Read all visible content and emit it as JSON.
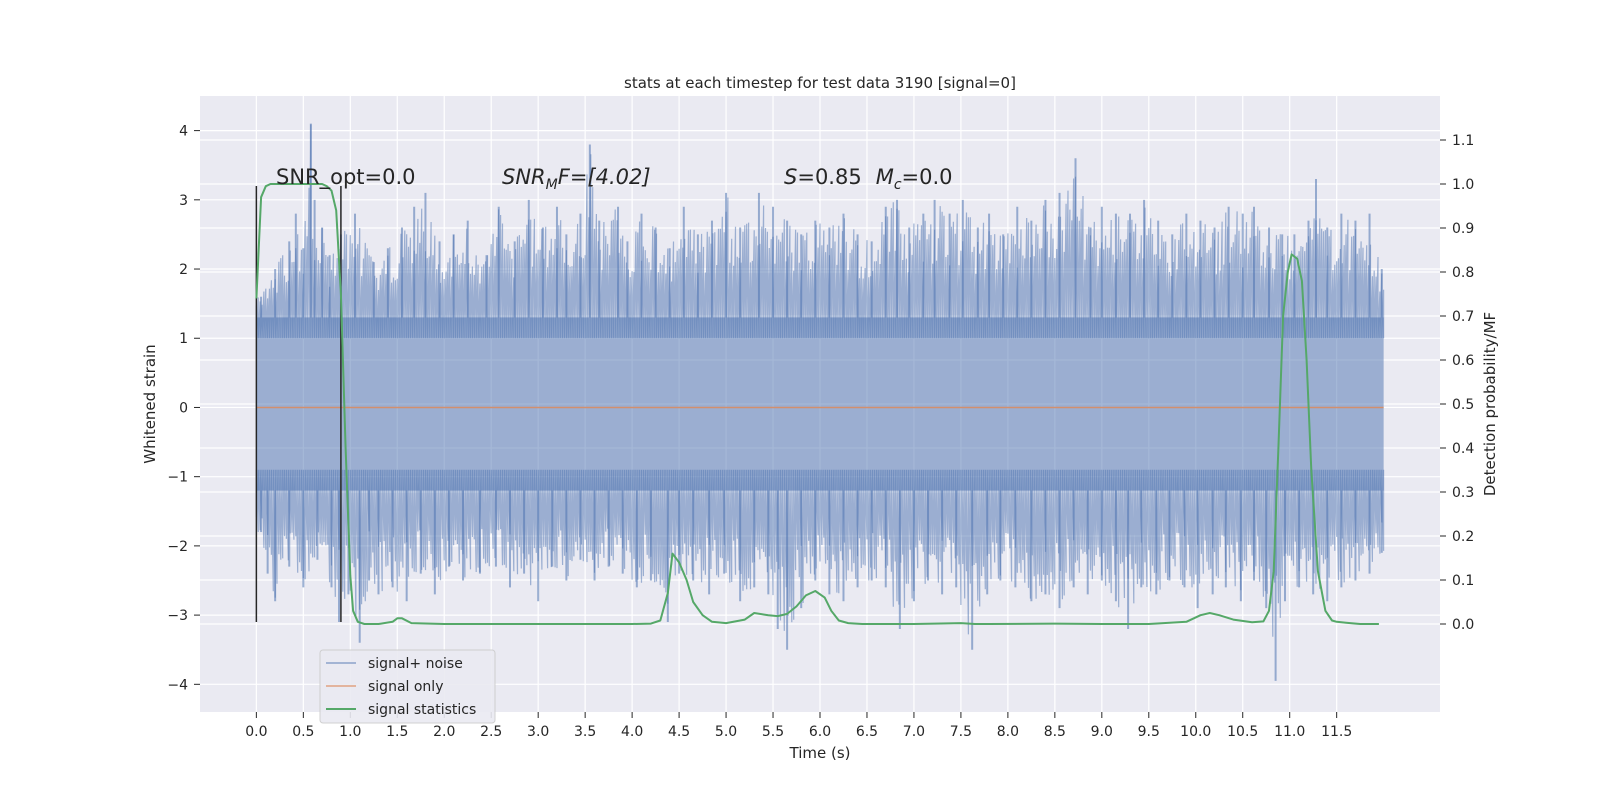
{
  "chart_data": {
    "type": "line",
    "title": "stats at each timestep for test data 3190 [signal=0]",
    "xlabel": "Time (s)",
    "ylabel_left": "Whitened strain",
    "ylabel_right": "Detection probability/MF",
    "xlim": [
      -0.6,
      12.6
    ],
    "ylim_left": [
      -4.4,
      4.5
    ],
    "ylim_right": [
      -0.2,
      1.2
    ],
    "x_ticks": [
      0.0,
      0.5,
      1.0,
      1.5,
      2.0,
      2.5,
      3.0,
      3.5,
      4.0,
      4.5,
      5.0,
      5.5,
      6.0,
      6.5,
      7.0,
      7.5,
      8.0,
      8.5,
      9.0,
      9.5,
      10.0,
      10.5,
      11.0,
      11.5
    ],
    "x_tick_labels": [
      "0.0",
      "0.5",
      "1.0",
      "1.5",
      "2.0",
      "2.5",
      "3.0",
      "3.5",
      "4.0",
      "4.5",
      "5.0",
      "5.5",
      "6.0",
      "6.5",
      "7.0",
      "7.5",
      "8.0",
      "8.5",
      "9.0",
      "9.5",
      "10.0",
      "10.5",
      "11.0",
      "11.5"
    ],
    "y_left_ticks": [
      4,
      3,
      2,
      1,
      0,
      -1,
      -2,
      -3,
      -4
    ],
    "y_left_tick_labels": [
      "4",
      "3",
      "2",
      "1",
      "0",
      "−1",
      "−2",
      "−3",
      "−4"
    ],
    "y_right_ticks": [
      1.1,
      1.0,
      0.9,
      0.8,
      0.7,
      0.6,
      0.5,
      0.4,
      0.3,
      0.2,
      0.1,
      0.0
    ],
    "y_right_tick_labels": [
      "1.1",
      "1.0",
      "0.9",
      "0.8",
      "0.7",
      "0.6",
      "0.5",
      "0.4",
      "0.3",
      "0.2",
      "0.1",
      "0.0"
    ],
    "grid": true,
    "legend_position": "lower-left",
    "colors": {
      "plot_bg": "#eaeaf2",
      "grid": "#ffffff",
      "noise": "#4c72b0",
      "signal": "#dd8452",
      "stats": "#55a868",
      "marker": "#262626"
    },
    "series": [
      {
        "name": "signal+ noise",
        "axis": "left",
        "style": "noise-band",
        "x_range": [
          0.0,
          12.0
        ],
        "core_band": [
          -1.2,
          1.3
        ],
        "upper_peaks": [
          [
            0.05,
            1.6
          ],
          [
            0.2,
            2.0
          ],
          [
            0.35,
            2.4
          ],
          [
            0.42,
            2.8
          ],
          [
            0.5,
            2.3
          ],
          [
            0.58,
            4.1
          ],
          [
            0.62,
            3.0
          ],
          [
            0.7,
            2.6
          ],
          [
            0.78,
            2.2
          ],
          [
            0.9,
            2.5
          ],
          [
            1.05,
            2.8
          ],
          [
            1.25,
            2.1
          ],
          [
            1.4,
            2.3
          ],
          [
            1.55,
            2.6
          ],
          [
            1.68,
            2.9
          ],
          [
            1.8,
            3.1
          ],
          [
            1.95,
            2.4
          ],
          [
            2.1,
            2.5
          ],
          [
            2.25,
            2.7
          ],
          [
            2.45,
            2.2
          ],
          [
            2.58,
            2.9
          ],
          [
            2.75,
            2.4
          ],
          [
            2.9,
            3.0
          ],
          [
            3.05,
            2.6
          ],
          [
            3.2,
            2.9
          ],
          [
            3.3,
            2.5
          ],
          [
            3.45,
            2.8
          ],
          [
            3.55,
            3.8
          ],
          [
            3.65,
            2.7
          ],
          [
            3.85,
            2.9
          ],
          [
            3.95,
            2.4
          ],
          [
            4.1,
            2.8
          ],
          [
            4.25,
            2.6
          ],
          [
            4.4,
            2.3
          ],
          [
            4.55,
            2.9
          ],
          [
            4.7,
            2.5
          ],
          [
            4.85,
            2.7
          ],
          [
            5.0,
            3.1
          ],
          [
            5.15,
            2.6
          ],
          [
            5.35,
            3.1
          ],
          [
            5.5,
            2.9
          ],
          [
            5.65,
            2.7
          ],
          [
            5.8,
            2.5
          ],
          [
            5.95,
            2.7
          ],
          [
            6.1,
            2.6
          ],
          [
            6.25,
            2.8
          ],
          [
            6.4,
            2.5
          ],
          [
            6.55,
            2.4
          ],
          [
            6.7,
            2.9
          ],
          [
            6.82,
            3.0
          ],
          [
            6.95,
            2.6
          ],
          [
            7.1,
            2.8
          ],
          [
            7.22,
            3.0
          ],
          [
            7.38,
            2.8
          ],
          [
            7.52,
            3.0
          ],
          [
            7.68,
            2.6
          ],
          [
            7.8,
            2.8
          ],
          [
            7.95,
            2.5
          ],
          [
            8.1,
            2.9
          ],
          [
            8.25,
            2.7
          ],
          [
            8.4,
            3.0
          ],
          [
            8.55,
            3.1
          ],
          [
            8.72,
            3.6
          ],
          [
            8.88,
            2.6
          ],
          [
            9.0,
            2.9
          ],
          [
            9.15,
            2.8
          ],
          [
            9.3,
            2.8
          ],
          [
            9.45,
            3.0
          ],
          [
            9.6,
            2.7
          ],
          [
            9.75,
            2.5
          ],
          [
            9.9,
            2.8
          ],
          [
            10.05,
            2.7
          ],
          [
            10.2,
            2.6
          ],
          [
            10.35,
            2.9
          ],
          [
            10.5,
            2.8
          ],
          [
            10.62,
            2.9
          ],
          [
            10.78,
            2.6
          ],
          [
            10.92,
            2.5
          ],
          [
            11.05,
            2.5
          ],
          [
            11.2,
            2.7
          ],
          [
            11.28,
            3.3
          ],
          [
            11.4,
            2.6
          ],
          [
            11.55,
            2.8
          ],
          [
            11.7,
            2.7
          ],
          [
            11.85,
            2.8
          ],
          [
            11.98,
            2.0
          ]
        ],
        "lower_peaks": [
          [
            0.05,
            -1.8
          ],
          [
            0.12,
            -2.4
          ],
          [
            0.2,
            -2.8
          ],
          [
            0.35,
            -2.3
          ],
          [
            0.5,
            -2.6
          ],
          [
            0.65,
            -2.2
          ],
          [
            0.8,
            -2.6
          ],
          [
            0.88,
            -3.1
          ],
          [
            0.98,
            -2.7
          ],
          [
            1.1,
            -3.4
          ],
          [
            1.2,
            -2.5
          ],
          [
            1.3,
            -2.7
          ],
          [
            1.45,
            -2.6
          ],
          [
            1.6,
            -2.8
          ],
          [
            1.75,
            -2.4
          ],
          [
            1.9,
            -2.7
          ],
          [
            2.05,
            -2.3
          ],
          [
            2.2,
            -2.5
          ],
          [
            2.38,
            -2.4
          ],
          [
            2.55,
            -2.3
          ],
          [
            2.7,
            -2.6
          ],
          [
            2.85,
            -2.4
          ],
          [
            3.0,
            -2.8
          ],
          [
            3.15,
            -2.3
          ],
          [
            3.3,
            -2.5
          ],
          [
            3.45,
            -2.2
          ],
          [
            3.6,
            -2.5
          ],
          [
            3.75,
            -2.3
          ],
          [
            3.9,
            -2.4
          ],
          [
            4.05,
            -2.6
          ],
          [
            4.2,
            -2.5
          ],
          [
            4.38,
            -3.1
          ],
          [
            4.5,
            -2.4
          ],
          [
            4.65,
            -2.5
          ],
          [
            4.82,
            -2.7
          ],
          [
            4.98,
            -2.4
          ],
          [
            5.15,
            -2.8
          ],
          [
            5.3,
            -2.6
          ],
          [
            5.45,
            -2.7
          ],
          [
            5.55,
            -3.2
          ],
          [
            5.65,
            -3.5
          ],
          [
            5.8,
            -2.9
          ],
          [
            5.95,
            -2.5
          ],
          [
            6.1,
            -2.7
          ],
          [
            6.25,
            -2.8
          ],
          [
            6.4,
            -2.6
          ],
          [
            6.55,
            -2.5
          ],
          [
            6.7,
            -2.6
          ],
          [
            6.85,
            -3.2
          ],
          [
            7.0,
            -2.8
          ],
          [
            7.15,
            -2.5
          ],
          [
            7.3,
            -2.7
          ],
          [
            7.45,
            -2.6
          ],
          [
            7.62,
            -3.5
          ],
          [
            7.78,
            -2.7
          ],
          [
            7.92,
            -2.5
          ],
          [
            8.08,
            -2.6
          ],
          [
            8.25,
            -2.8
          ],
          [
            8.4,
            -2.7
          ],
          [
            8.55,
            -2.9
          ],
          [
            8.7,
            -2.6
          ],
          [
            8.85,
            -2.7
          ],
          [
            9.0,
            -2.5
          ],
          [
            9.15,
            -2.8
          ],
          [
            9.28,
            -3.2
          ],
          [
            9.42,
            -2.6
          ],
          [
            9.58,
            -2.7
          ],
          [
            9.72,
            -2.5
          ],
          [
            9.88,
            -2.6
          ],
          [
            10.02,
            -2.9
          ],
          [
            10.18,
            -2.7
          ],
          [
            10.32,
            -2.6
          ],
          [
            10.48,
            -2.8
          ],
          [
            10.62,
            -2.5
          ],
          [
            10.75,
            -2.9
          ],
          [
            10.85,
            -3.95
          ],
          [
            10.95,
            -2.8
          ],
          [
            11.1,
            -2.6
          ],
          [
            11.25,
            -2.7
          ],
          [
            11.4,
            -2.8
          ],
          [
            11.55,
            -2.6
          ],
          [
            11.7,
            -2.5
          ],
          [
            11.85,
            -2.4
          ],
          [
            11.98,
            -2.1
          ]
        ]
      },
      {
        "name": "signal only",
        "axis": "left",
        "x": [
          0.0,
          12.0
        ],
        "y": [
          0.0,
          0.0
        ]
      },
      {
        "name": "signal statistics",
        "axis": "right",
        "x": [
          0.0,
          0.05,
          0.1,
          0.15,
          0.2,
          0.3,
          0.4,
          0.5,
          0.6,
          0.7,
          0.75,
          0.8,
          0.85,
          0.9,
          0.95,
          1.0,
          1.03,
          1.08,
          1.15,
          1.3,
          1.45,
          1.5,
          1.55,
          1.65,
          2.0,
          3.0,
          4.0,
          4.2,
          4.3,
          4.38,
          4.43,
          4.5,
          4.58,
          4.65,
          4.75,
          4.85,
          5.0,
          5.2,
          5.3,
          5.45,
          5.55,
          5.65,
          5.75,
          5.85,
          5.95,
          6.05,
          6.12,
          6.2,
          6.3,
          6.45,
          6.6,
          7.0,
          7.5,
          7.65,
          7.8,
          8.5,
          9.0,
          9.5,
          9.9,
          10.05,
          10.15,
          10.25,
          10.4,
          10.6,
          10.72,
          10.78,
          10.83,
          10.88,
          10.93,
          10.98,
          11.02,
          11.08,
          11.13,
          11.18,
          11.23,
          11.3,
          11.38,
          11.45,
          11.5,
          11.6,
          11.75,
          11.95
        ],
        "y": [
          0.74,
          0.97,
          0.995,
          1.0,
          1.0,
          1.0,
          1.0,
          1.0,
          1.0,
          1.0,
          0.995,
          0.985,
          0.94,
          0.75,
          0.4,
          0.11,
          0.03,
          0.005,
          0.0,
          0.0,
          0.005,
          0.013,
          0.013,
          0.002,
          0.0,
          0.0,
          0.0,
          0.001,
          0.008,
          0.07,
          0.16,
          0.14,
          0.1,
          0.05,
          0.02,
          0.005,
          0.002,
          0.01,
          0.025,
          0.02,
          0.018,
          0.023,
          0.04,
          0.065,
          0.075,
          0.06,
          0.03,
          0.008,
          0.002,
          0.0,
          0.0,
          0.0,
          0.002,
          0.0,
          0.0,
          0.001,
          0.0,
          0.0,
          0.005,
          0.02,
          0.025,
          0.02,
          0.01,
          0.004,
          0.006,
          0.03,
          0.12,
          0.4,
          0.7,
          0.8,
          0.84,
          0.83,
          0.78,
          0.6,
          0.35,
          0.12,
          0.03,
          0.008,
          0.005,
          0.003,
          0.0,
          0.0
        ]
      }
    ],
    "markers": [
      {
        "x": 0.0,
        "y_range": [
          -3.1,
          3.2
        ]
      },
      {
        "x": 0.9,
        "y_range": [
          -3.1,
          3.2
        ]
      }
    ],
    "annotations": {
      "snr_opt": "SNR_opt=0.0",
      "snr_mf_prefix": "SNR",
      "snr_mf_sub": "M",
      "snr_mf_suffix": "F=[4.02]",
      "s_label": "S",
      "s_value": "=0.85",
      "mc_label": "M",
      "mc_sub": "c",
      "mc_value": "=0.0"
    }
  }
}
